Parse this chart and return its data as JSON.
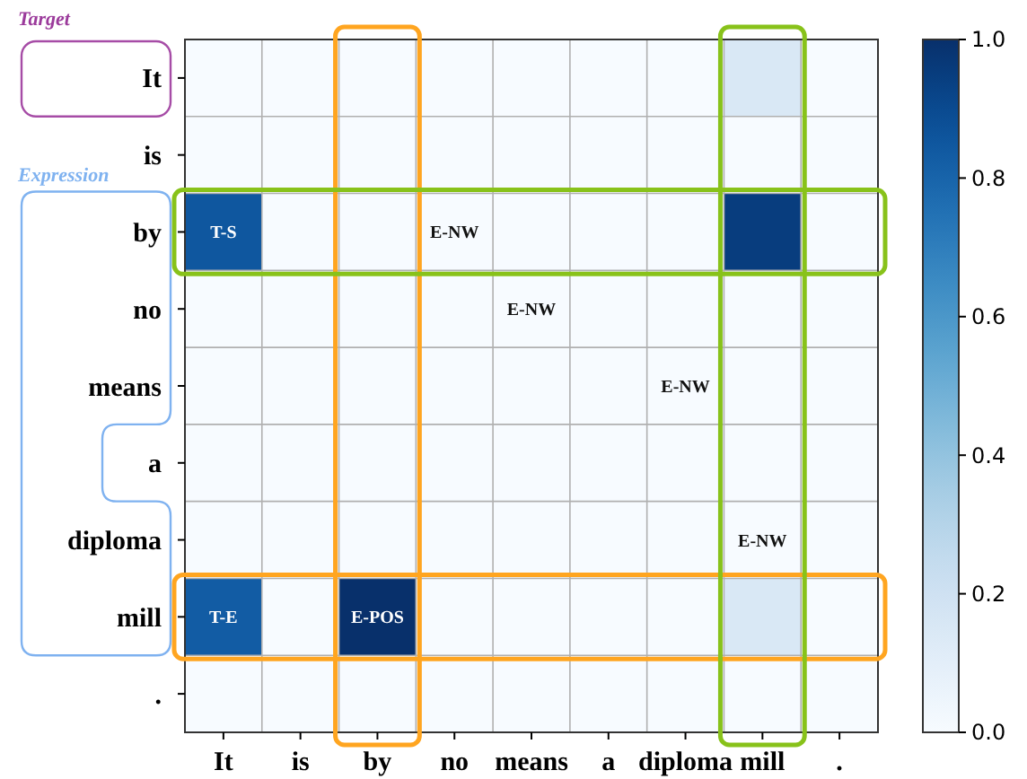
{
  "chart_data": {
    "type": "heatmap",
    "categories": [
      "It",
      "is",
      "by",
      "no",
      "means",
      "a",
      "diploma",
      "mill",
      "."
    ],
    "y_categories": [
      "It",
      "is",
      "by",
      "no",
      "means",
      "a",
      "diploma",
      "mill",
      "."
    ],
    "cells": [
      [
        0,
        0,
        0,
        0,
        0,
        0,
        0,
        0.15,
        0
      ],
      [
        0,
        0,
        0,
        0,
        0,
        0,
        0,
        0,
        0
      ],
      [
        0.85,
        0,
        0,
        0,
        0,
        0,
        0,
        0.95,
        0
      ],
      [
        0,
        0,
        0,
        0,
        0,
        0,
        0,
        0,
        0
      ],
      [
        0,
        0,
        0,
        0,
        0,
        0,
        0,
        0,
        0
      ],
      [
        0,
        0,
        0,
        0,
        0,
        0,
        0,
        0,
        0
      ],
      [
        0,
        0,
        0,
        0,
        0,
        0,
        0,
        0,
        0
      ],
      [
        0.83,
        0,
        1.0,
        0,
        0,
        0,
        0,
        0.15,
        0
      ],
      [
        0,
        0,
        0,
        0,
        0,
        0,
        0,
        0,
        0
      ]
    ],
    "cell_labels": [
      [
        null,
        null,
        null,
        null,
        null,
        null,
        null,
        null,
        null
      ],
      [
        null,
        null,
        null,
        null,
        null,
        null,
        null,
        null,
        null
      ],
      [
        "T-S",
        null,
        null,
        "E-NW",
        null,
        null,
        null,
        null,
        null
      ],
      [
        null,
        null,
        null,
        null,
        "E-NW",
        null,
        null,
        null,
        null
      ],
      [
        null,
        null,
        null,
        null,
        null,
        null,
        "E-NW",
        null,
        null
      ],
      [
        null,
        null,
        null,
        null,
        null,
        null,
        null,
        null,
        null
      ],
      [
        null,
        null,
        null,
        null,
        null,
        null,
        null,
        "E-NW",
        null
      ],
      [
        "T-E",
        null,
        "E-POS",
        null,
        null,
        null,
        null,
        null,
        null
      ],
      [
        null,
        null,
        null,
        null,
        null,
        null,
        null,
        null,
        null
      ]
    ],
    "clim": [
      0,
      1
    ],
    "cticks": [
      {
        "value": 0,
        "label": "0.0"
      },
      {
        "value": 0.2,
        "label": "0.2"
      },
      {
        "value": 0.4,
        "label": "0.4"
      },
      {
        "value": 0.6,
        "label": "0.6"
      },
      {
        "value": 0.8,
        "label": "0.8"
      },
      {
        "value": 1,
        "label": "1.0"
      }
    ],
    "grid": true,
    "annotations": [
      "Target",
      "Expression"
    ]
  }
}
